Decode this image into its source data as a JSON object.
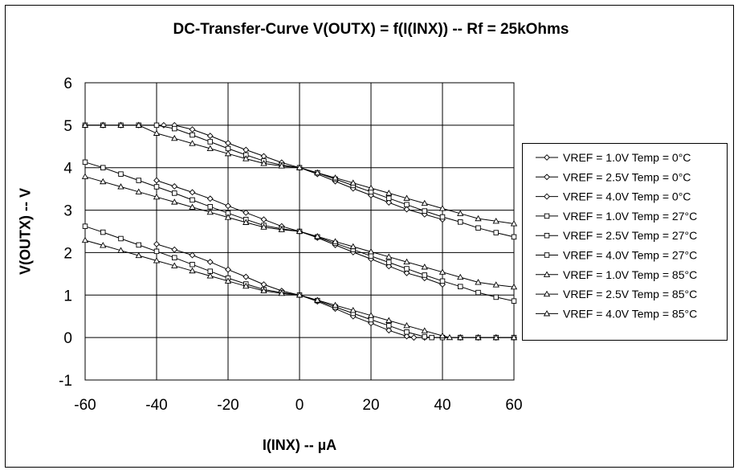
{
  "chart_data": {
    "type": "line",
    "title": "DC-Transfer-Curve V(OUTX) = f(I(INX)) -- Rf = 25kOhms",
    "xlabel": "I(INX) -- µA",
    "ylabel": "V(OUTX) -- V",
    "xlim": [
      -60,
      60
    ],
    "ylim": [
      -1,
      6
    ],
    "xticks": [
      "-60",
      "-40",
      "-20",
      "0",
      "20",
      "40",
      "60"
    ],
    "yticks": [
      "-1",
      "0",
      "1",
      "2",
      "3",
      "4",
      "5",
      "6"
    ],
    "grid": true,
    "legend_position": "right",
    "colors": {
      "line": "#000000",
      "grid": "#000000",
      "background": "#ffffff"
    },
    "series": [
      {
        "name": "VREF = 1.0V Temp = 0°C",
        "marker": "diamond",
        "x": [
          -40,
          -35,
          -30,
          -25,
          -20,
          -15,
          -10,
          -5,
          0,
          5,
          10,
          15,
          20,
          25,
          30,
          32,
          35,
          40,
          45,
          50,
          55,
          60
        ],
        "y": [
          2.2,
          2.07,
          1.94,
          1.78,
          1.6,
          1.43,
          1.25,
          1.1,
          1.0,
          0.85,
          0.68,
          0.5,
          0.34,
          0.17,
          0.03,
          0.0,
          0.0,
          0.0,
          0.0,
          0.0,
          0.0,
          0.0
        ]
      },
      {
        "name": "VREF = 2.5V Temp = 0°C",
        "marker": "diamond",
        "x": [
          -40,
          -35,
          -30,
          -25,
          -20,
          -15,
          -10,
          -5,
          0,
          5,
          10,
          15,
          20,
          25,
          30,
          35,
          40
        ],
        "y": [
          3.7,
          3.56,
          3.42,
          3.27,
          3.1,
          2.94,
          2.78,
          2.62,
          2.5,
          2.35,
          2.18,
          2.01,
          1.85,
          1.68,
          1.52,
          1.4,
          1.25
        ]
      },
      {
        "name": "VREF = 4.0V Temp = 0°C",
        "marker": "diamond",
        "x": [
          -60,
          -55,
          -50,
          -45,
          -40,
          -38,
          -35,
          -30,
          -25,
          -20,
          -15,
          -10,
          -5,
          0,
          5,
          10,
          15,
          20,
          25,
          30,
          35,
          40
        ],
        "y": [
          5.0,
          5.0,
          5.0,
          5.0,
          5.0,
          5.0,
          5.0,
          4.9,
          4.75,
          4.58,
          4.42,
          4.27,
          4.12,
          4.0,
          3.85,
          3.68,
          3.51,
          3.35,
          3.18,
          3.02,
          2.9,
          2.78
        ]
      },
      {
        "name": "VREF = 1.0V Temp = 27°C",
        "marker": "square",
        "x": [
          -60,
          -55,
          -50,
          -45,
          -40,
          -35,
          -30,
          -25,
          -20,
          -15,
          -10,
          -5,
          0,
          5,
          10,
          15,
          20,
          25,
          30,
          35,
          37,
          40,
          45,
          50,
          55,
          60
        ],
        "y": [
          2.62,
          2.48,
          2.33,
          2.18,
          2.03,
          1.88,
          1.72,
          1.56,
          1.4,
          1.26,
          1.13,
          1.06,
          1.0,
          0.87,
          0.72,
          0.57,
          0.42,
          0.28,
          0.13,
          0.02,
          0.0,
          0.0,
          0.0,
          0.0,
          0.0,
          0.0
        ]
      },
      {
        "name": "VREF = 2.5V Temp = 27°C",
        "marker": "square",
        "x": [
          -60,
          -55,
          -50,
          -45,
          -40,
          -35,
          -30,
          -25,
          -20,
          -15,
          -10,
          -5,
          0,
          5,
          10,
          15,
          20,
          25,
          30,
          35,
          40,
          45,
          50,
          55,
          60
        ],
        "y": [
          4.13,
          4.0,
          3.85,
          3.7,
          3.55,
          3.4,
          3.24,
          3.08,
          2.93,
          2.78,
          2.64,
          2.56,
          2.5,
          2.37,
          2.22,
          2.07,
          1.92,
          1.77,
          1.62,
          1.47,
          1.33,
          1.2,
          1.06,
          0.95,
          0.86
        ]
      },
      {
        "name": "VREF = 4.0V Temp = 27°C",
        "marker": "square",
        "x": [
          -60,
          -55,
          -50,
          -45,
          -40,
          -35,
          -30,
          -25,
          -20,
          -15,
          -10,
          -5,
          0,
          5,
          10,
          15,
          20,
          25,
          30,
          35,
          40,
          45,
          50,
          55,
          60
        ],
        "y": [
          5.0,
          5.0,
          5.0,
          5.0,
          5.0,
          4.92,
          4.77,
          4.61,
          4.45,
          4.3,
          4.16,
          4.06,
          4.0,
          3.88,
          3.73,
          3.58,
          3.43,
          3.28,
          3.13,
          2.98,
          2.84,
          2.72,
          2.58,
          2.47,
          2.37
        ]
      },
      {
        "name": "VREF = 1.0V Temp = 85°C",
        "marker": "triangle",
        "x": [
          -60,
          -55,
          -50,
          -45,
          -40,
          -35,
          -30,
          -25,
          -20,
          -15,
          -10,
          -5,
          0,
          5,
          10,
          15,
          20,
          25,
          30,
          35,
          40,
          42,
          45,
          50,
          55,
          60
        ],
        "y": [
          2.29,
          2.17,
          2.05,
          1.93,
          1.81,
          1.69,
          1.57,
          1.45,
          1.33,
          1.21,
          1.1,
          1.04,
          1.0,
          0.88,
          0.76,
          0.64,
          0.52,
          0.4,
          0.28,
          0.16,
          0.04,
          0.0,
          0.0,
          0.0,
          0.0,
          0.0
        ]
      },
      {
        "name": "VREF = 2.5V Temp = 85°C",
        "marker": "triangle",
        "x": [
          -60,
          -55,
          -50,
          -45,
          -40,
          -35,
          -30,
          -25,
          -20,
          -15,
          -10,
          -5,
          0,
          5,
          10,
          15,
          20,
          25,
          30,
          35,
          40,
          45,
          50,
          55,
          60
        ],
        "y": [
          3.79,
          3.67,
          3.55,
          3.43,
          3.31,
          3.19,
          3.07,
          2.95,
          2.83,
          2.71,
          2.6,
          2.54,
          2.5,
          2.38,
          2.26,
          2.14,
          2.02,
          1.9,
          1.78,
          1.66,
          1.54,
          1.42,
          1.3,
          1.24,
          1.19
        ]
      },
      {
        "name": "VREF = 4.0V Temp = 85°C",
        "marker": "triangle",
        "x": [
          -60,
          -55,
          -50,
          -45,
          -40,
          -35,
          -30,
          -25,
          -20,
          -15,
          -10,
          -5,
          0,
          5,
          10,
          15,
          20,
          25,
          30,
          35,
          40,
          45,
          50,
          55,
          60
        ],
        "y": [
          5.0,
          5.0,
          5.0,
          5.0,
          4.81,
          4.69,
          4.57,
          4.45,
          4.33,
          4.21,
          4.1,
          4.04,
          4.0,
          3.88,
          3.76,
          3.64,
          3.52,
          3.4,
          3.28,
          3.16,
          3.04,
          2.92,
          2.8,
          2.74,
          2.68
        ]
      }
    ]
  }
}
